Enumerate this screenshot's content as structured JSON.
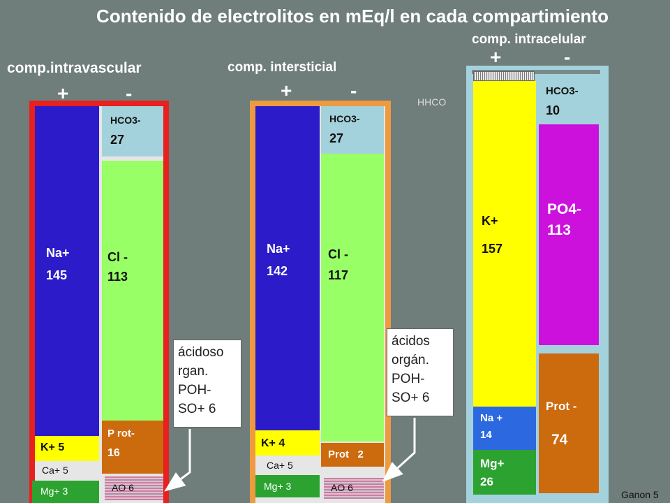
{
  "title": "Contenido de electrolitos en mEq/l en cada compartimiento",
  "colors": {
    "background": "#6f7d7b",
    "intravascular_frame": "#e8201e",
    "interstitial_frame": "#ee9a3f",
    "intracellular_frame": "#a4d2dc",
    "na": "#2c1bc8",
    "k": "#ffff00",
    "cl": "#99ff66",
    "hco3": "#a4d2dc",
    "prot": "#cc6a0e",
    "mg": "#2ca331",
    "po4": "#cc11dd"
  },
  "intravascular": {
    "header": "comp.intravascular",
    "plus": "+",
    "minus": "-",
    "na_label": "Na+",
    "na_value": "145",
    "hco3_label": "HCO3-",
    "hco3_value": "27",
    "cl_label": "Cl -",
    "cl_value": "113",
    "prot_label": "P rot-",
    "prot_value": "16",
    "k_label": "K+ 5",
    "ca_label": "Ca+ 5",
    "mg_label": "Mg+ 3",
    "ao_label": "AO 6",
    "note": [
      "ácidoso",
      "rgan.",
      "POH-",
      "SO+ 6"
    ]
  },
  "interstitial": {
    "header": "comp. intersticial",
    "plus": "+",
    "minus": "-",
    "na_label": "Na+",
    "na_value": "142",
    "hco3_label": "HCO3-",
    "hco3_value": "27",
    "cl_label": "Cl -",
    "cl_value": "117",
    "prot_label": "Prot   2",
    "k_label": "K+ 4",
    "ca_label": "Ca+ 5",
    "mg_label": "Mg+ 3",
    "ao_label": "AO 6",
    "note": [
      "ácidos",
      "orgán.",
      "POH-",
      "SO+ 6"
    ]
  },
  "intracellular": {
    "header": "comp. intracelular",
    "plus": "+",
    "minus": "-",
    "hhco_label": "HHCO",
    "k_label": "K+",
    "k_value": "157",
    "hco3_label": "HCO3-",
    "hco3_value": "10",
    "po4_label": "PO4-",
    "po4_value": "113",
    "prot_label": "Prot -",
    "prot_value": "74",
    "na_label": "Na +",
    "na_value": "14",
    "mg_label": "Mg+",
    "mg_value": "26"
  },
  "source": "Ganon 5"
}
